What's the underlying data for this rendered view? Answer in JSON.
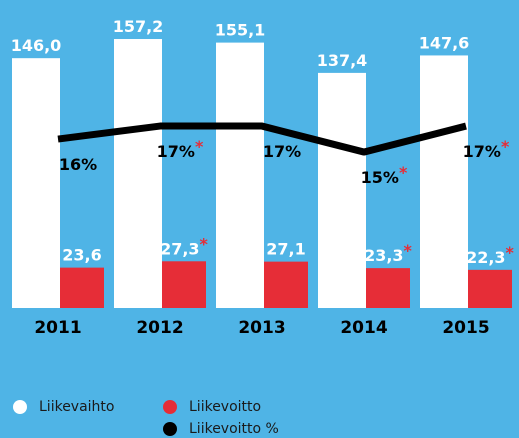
{
  "chart_data": {
    "type": "bar",
    "categories": [
      "2011",
      "2012",
      "2013",
      "2014",
      "2015"
    ],
    "ylim": [
      0,
      180
    ],
    "y2lim": [
      3,
      26.7
    ],
    "series": [
      {
        "name": "Liikevaihto",
        "color": "#ffffff",
        "values": [
          146.0,
          157.2,
          155.1,
          137.4,
          147.6
        ],
        "value_labels": [
          "146,0",
          "157,2",
          "155,1",
          "137,4",
          "147,6"
        ]
      },
      {
        "name": "Liikevoitto",
        "color": "#e62d37",
        "values": [
          23.6,
          27.3,
          27.1,
          23.3,
          22.3
        ],
        "value_labels": [
          "23,6",
          "27,3",
          "27,1",
          "23,3",
          "22,3"
        ],
        "markers": [
          null,
          "*",
          null,
          "*",
          "*"
        ]
      },
      {
        "name": "Liikevoitto %",
        "type": "line",
        "axis": "y2",
        "color": "#000000",
        "values": [
          16,
          17,
          17,
          15,
          17
        ],
        "value_labels": [
          "16%",
          "17%",
          "17%",
          "15%",
          "17%"
        ],
        "markers": [
          null,
          "*",
          null,
          "*",
          "*"
        ]
      }
    ]
  }
}
